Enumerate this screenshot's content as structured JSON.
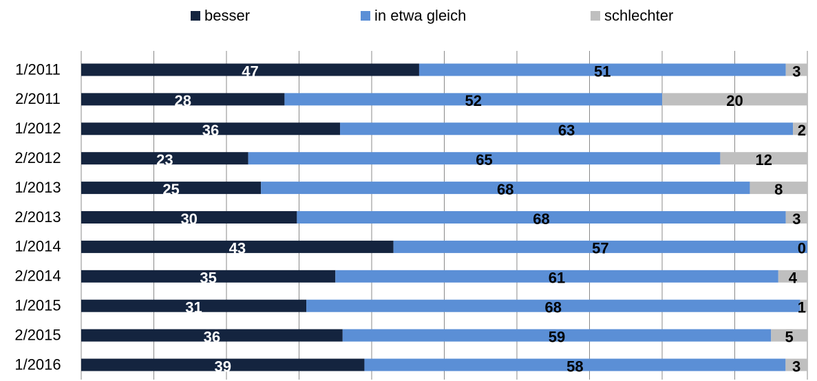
{
  "chart_data": {
    "type": "stacked_percent_bar",
    "orientation": "horizontal",
    "categories": [
      "1/2011",
      "2/2011",
      "1/2012",
      "2/2012",
      "1/2013",
      "2/2013",
      "1/2014",
      "2/2014",
      "1/2015",
      "2/2015",
      "1/2016"
    ],
    "series": [
      {
        "name": "besser",
        "color": "#14243f",
        "label_color": "#ffffff",
        "values": [
          47,
          28,
          36,
          23,
          25,
          30,
          43,
          35,
          31,
          36,
          39
        ]
      },
      {
        "name": "in etwa gleich",
        "color": "#5b8fd6",
        "label_color": "#000000",
        "values": [
          51,
          52,
          63,
          65,
          68,
          68,
          57,
          61,
          68,
          59,
          58
        ]
      },
      {
        "name": "schlechter",
        "color": "#bfbfbf",
        "label_color": "#000000",
        "values": [
          3,
          20,
          2,
          12,
          8,
          3,
          0,
          4,
          1,
          5,
          3
        ]
      }
    ],
    "xlim": [
      0,
      100
    ],
    "xticks": [
      0,
      10,
      20,
      30,
      40,
      50,
      60,
      70,
      80,
      90,
      100
    ],
    "xtick_labels": false,
    "grid": true,
    "legend": "top"
  }
}
